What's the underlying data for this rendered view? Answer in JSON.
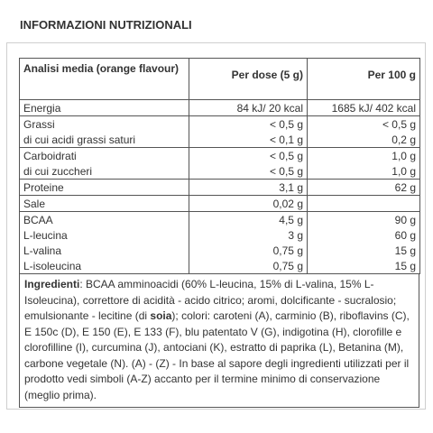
{
  "title": "INFORMAZIONI NUTRIZIONALI",
  "table": {
    "headers": [
      "Analisi media (orange flavour)",
      "Per dose (5 g)",
      "Per 100 g"
    ],
    "groups": [
      [
        [
          "Energia",
          "84 kJ/ 20 kcal",
          "1685 kJ/ 402 kcal"
        ]
      ],
      [
        [
          "Grassi",
          "< 0,5 g",
          "< 0,5 g"
        ],
        [
          "di cui acidi grassi saturi",
          "< 0,1 g",
          "0,2 g"
        ]
      ],
      [
        [
          "Carboidrati",
          "< 0,5 g",
          "1,0 g"
        ],
        [
          "di cui zuccheri",
          "< 0,5 g",
          "1,0 g"
        ]
      ],
      [
        [
          "Proteine",
          "3,1 g",
          "62 g"
        ]
      ],
      [
        [
          "Sale",
          "0,02 g",
          ""
        ]
      ],
      [
        [
          "BCAA",
          "4,5 g",
          "90 g"
        ],
        [
          "L-leucina",
          "3 g",
          "60 g"
        ],
        [
          "L-valina",
          "0,75 g",
          "15 g"
        ],
        [
          "L-isoleucina",
          "0,75 g",
          "15 g"
        ]
      ]
    ]
  },
  "ingredients": {
    "label": "Ingredienti",
    "text_before": ": BCAA amminoacidi (60% L-leucina, 15% di L-valina, 15% L-Isoleucina), correttore di acidità - acido citrico; aromi, dolcificante - sucralosio; emulsionante - lecitine (di ",
    "bold_word": "soia",
    "text_after": "); colori: caroteni (A), carminio (B), riboflavins (C), E 150c (D), E 150 (E), E 133 (F), blu patentato V (G), indigotina (H), clorofille e clorofilline (I), curcumina (J), antociani (K), estratto di paprika (L), Betanina (M), carbone vegetale (N). (A) - (Z) - In base al sapore degli ingredienti utilizzati per il prodotto vedi simboli (A-Z) accanto per il termine minimo di conservazione (meglio prima)."
  }
}
